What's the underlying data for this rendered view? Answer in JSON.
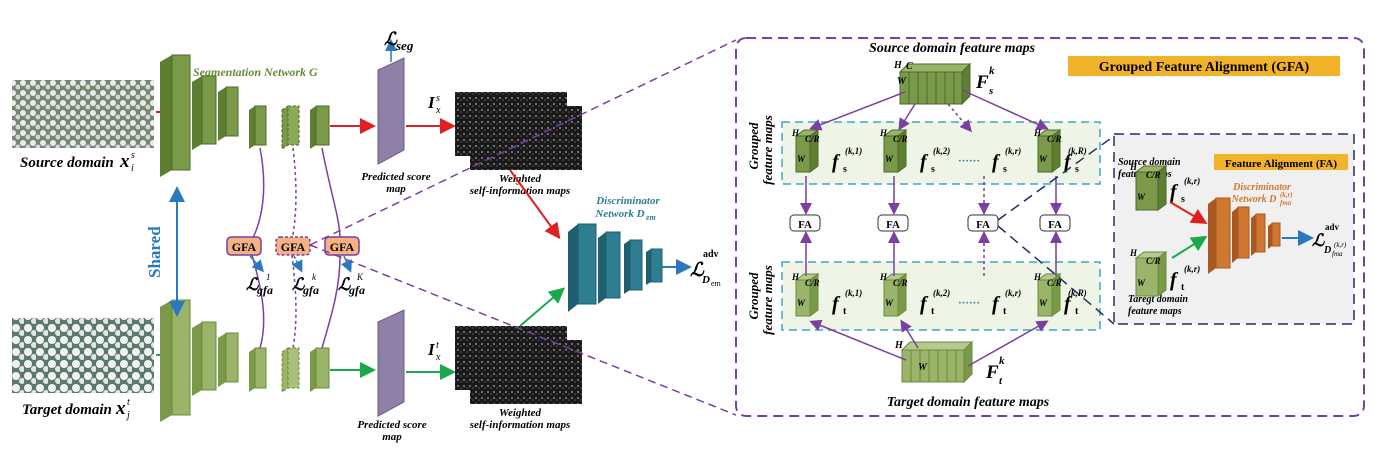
{
  "labels": {
    "seg_network": "Segmentation Network G",
    "source_domain": "Source domain",
    "target_domain": "Target domain",
    "shared": "Shared",
    "predicted_score_map_1": "Predicted score",
    "predicted_score_map_2": "map",
    "weighted_1": "Weighted",
    "weighted_2": "self-information maps",
    "discriminator_1": "Discriminator",
    "discriminator_2": "Network D",
    "discriminator_sub": "em",
    "source_feature_maps": "Source domain feature maps",
    "target_feature_maps": "Target domain feature maps",
    "gfa_title": "Grouped Feature Alignment (GFA)",
    "grouped_1": "Grouped",
    "grouped_2": "feature maps",
    "fa_title": "Feature Alignment (FA)",
    "fa_source_1": "Source domain",
    "fa_source_2": "feature maps",
    "fa_target_1": "Taregt domain",
    "fa_target_2": "feature maps",
    "fa_disc_1": "Discriminator",
    "fa_disc_2": "Network D",
    "fa_disc_sub": "fma",
    "fa_disc_sup": "(k,r)"
  },
  "symbols": {
    "x_s": "x",
    "x_s_sub": "i",
    "x_s_sup": "s",
    "x_t": "x",
    "x_t_sub": "j",
    "x_t_sup": "t",
    "I_s": "I",
    "I_s_sub": "x",
    "I_s_sup": "s",
    "I_t": "I",
    "I_t_sub": "x",
    "I_t_sup": "t",
    "L": "ℒ",
    "seg": "seg",
    "gfa": "gfa",
    "sup_1": "1",
    "sup_k": "k",
    "sup_K": "K",
    "adv": "adv",
    "D_em": "D",
    "em": "em",
    "F": "F",
    "F_s_sub": "s",
    "F_t_sub": "t",
    "k": "k",
    "f": "f",
    "s": "s",
    "t": "t",
    "sup_k1": "(k,1)",
    "sup_k2": "(k,2)",
    "sup_kr": "(k,r)",
    "sup_kR": "(k,R)",
    "dots": "······",
    "H": "H",
    "W": "W",
    "CR": "C/R",
    "C": "C",
    "D_fma": "D",
    "fma": "fma"
  },
  "blocks": {
    "gfa": "GFA",
    "fa": "FA"
  },
  "colors": {
    "green_dark": "#7a9a4a",
    "green_light": "#9ab46a",
    "purple": "#7b3fa0",
    "red": "#e02020",
    "green_arrow": "#1aa84a",
    "blue_arrow": "#2a78c0",
    "teal": "#2f7d90",
    "orange": "#d07830",
    "gfa_fill": "#f4b183",
    "gfa_title_bg": "#f2b22a",
    "score_map": "#8f80a8",
    "dash_blue": "#3aa8c8",
    "navy": "#1f3060"
  }
}
